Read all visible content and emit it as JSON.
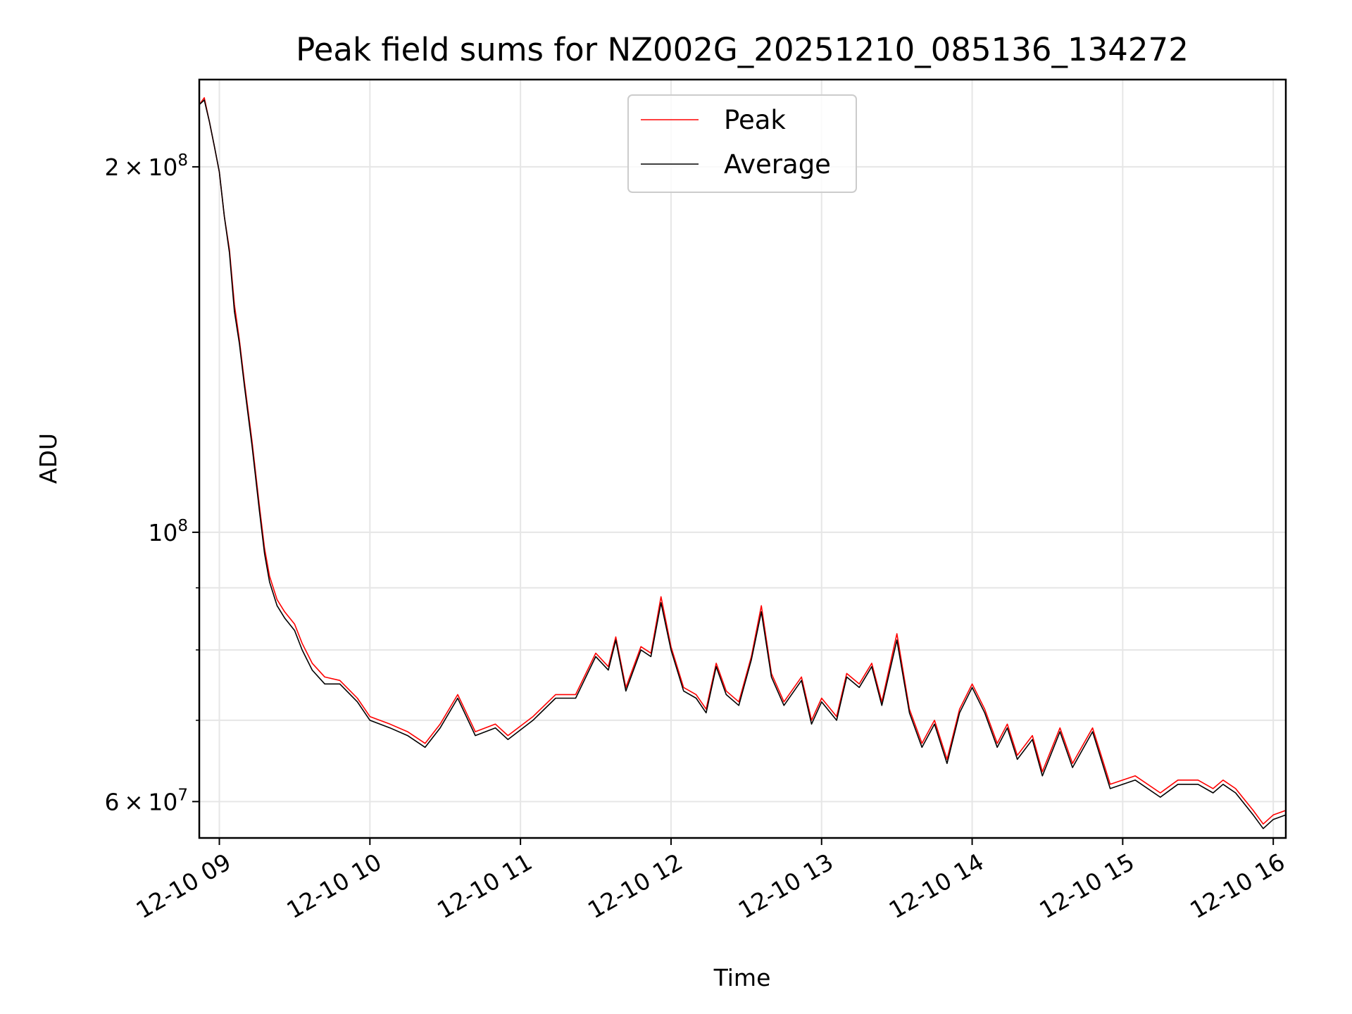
{
  "chart_data": {
    "type": "line",
    "title": "Peak field sums for NZ002G_20251210_085136_134272",
    "xlabel": "Time",
    "ylabel": "ADU",
    "y_scale": "log",
    "x_range": [
      "2025-12-10T08:52",
      "2025-12-10T16:05"
    ],
    "ylim": [
      56000000,
      236000000
    ],
    "grid": true,
    "legend_position": "upper center",
    "x_ticks": [
      {
        "t": "2025-12-10T09:00",
        "label": "12-10 09"
      },
      {
        "t": "2025-12-10T10:00",
        "label": "12-10 10"
      },
      {
        "t": "2025-12-10T11:00",
        "label": "12-10 11"
      },
      {
        "t": "2025-12-10T12:00",
        "label": "12-10 12"
      },
      {
        "t": "2025-12-10T13:00",
        "label": "12-10 13"
      },
      {
        "t": "2025-12-10T14:00",
        "label": "12-10 14"
      },
      {
        "t": "2025-12-10T15:00",
        "label": "12-10 15"
      },
      {
        "t": "2025-12-10T16:00",
        "label": "12-10 16"
      }
    ],
    "y_major_ticks": [
      {
        "value": 60000000,
        "mantissa": "6",
        "exponent": "7"
      },
      {
        "value": 100000000,
        "mantissa": "",
        "exponent": "8"
      },
      {
        "value": 200000000,
        "mantissa": "2",
        "exponent": "8"
      }
    ],
    "y_minor_gridlines": [
      70000000,
      80000000,
      90000000
    ],
    "series": [
      {
        "name": "Average",
        "color": "#000000",
        "points": [
          [
            "2025-12-10T08:52",
            225000000
          ],
          [
            "2025-12-10T08:54",
            227000000
          ],
          [
            "2025-12-10T08:56",
            218000000
          ],
          [
            "2025-12-10T08:58",
            208000000
          ],
          [
            "2025-12-10T09:00",
            198000000
          ],
          [
            "2025-12-10T09:02",
            182000000
          ],
          [
            "2025-12-10T09:04",
            170000000
          ],
          [
            "2025-12-10T09:06",
            152000000
          ],
          [
            "2025-12-10T09:08",
            143000000
          ],
          [
            "2025-12-10T09:10",
            132000000
          ],
          [
            "2025-12-10T09:13",
            118000000
          ],
          [
            "2025-12-10T09:16",
            104000000
          ],
          [
            "2025-12-10T09:18",
            96000000
          ],
          [
            "2025-12-10T09:20",
            91000000
          ],
          [
            "2025-12-10T09:23",
            87000000
          ],
          [
            "2025-12-10T09:26",
            85000000
          ],
          [
            "2025-12-10T09:30",
            83000000
          ],
          [
            "2025-12-10T09:33",
            80000000
          ],
          [
            "2025-12-10T09:37",
            77000000
          ],
          [
            "2025-12-10T09:42",
            75000000
          ],
          [
            "2025-12-10T09:48",
            75000000
          ],
          [
            "2025-12-10T09:55",
            72500000
          ],
          [
            "2025-12-10T10:00",
            70000000
          ],
          [
            "2025-12-10T10:08",
            69000000
          ],
          [
            "2025-12-10T10:15",
            68000000
          ],
          [
            "2025-12-10T10:22",
            66500000
          ],
          [
            "2025-12-10T10:28",
            69000000
          ],
          [
            "2025-12-10T10:35",
            73000000
          ],
          [
            "2025-12-10T10:42",
            68000000
          ],
          [
            "2025-12-10T10:50",
            69000000
          ],
          [
            "2025-12-10T10:55",
            67500000
          ],
          [
            "2025-12-10T11:05",
            70000000
          ],
          [
            "2025-12-10T11:14",
            73000000
          ],
          [
            "2025-12-10T11:22",
            73000000
          ],
          [
            "2025-12-10T11:30",
            79000000
          ],
          [
            "2025-12-10T11:35",
            77000000
          ],
          [
            "2025-12-10T11:38",
            81500000
          ],
          [
            "2025-12-10T11:42",
            74000000
          ],
          [
            "2025-12-10T11:48",
            80000000
          ],
          [
            "2025-12-10T11:52",
            79000000
          ],
          [
            "2025-12-10T11:56",
            87500000
          ],
          [
            "2025-12-10T12:00",
            80000000
          ],
          [
            "2025-12-10T12:05",
            74000000
          ],
          [
            "2025-12-10T12:10",
            73000000
          ],
          [
            "2025-12-10T12:14",
            71000000
          ],
          [
            "2025-12-10T12:18",
            77500000
          ],
          [
            "2025-12-10T12:22",
            73500000
          ],
          [
            "2025-12-10T12:27",
            72000000
          ],
          [
            "2025-12-10T12:32",
            78500000
          ],
          [
            "2025-12-10T12:36",
            86000000
          ],
          [
            "2025-12-10T12:40",
            76000000
          ],
          [
            "2025-12-10T12:45",
            72000000
          ],
          [
            "2025-12-10T12:52",
            75500000
          ],
          [
            "2025-12-10T12:56",
            69500000
          ],
          [
            "2025-12-10T13:00",
            72500000
          ],
          [
            "2025-12-10T13:06",
            70000000
          ],
          [
            "2025-12-10T13:10",
            76000000
          ],
          [
            "2025-12-10T13:15",
            74500000
          ],
          [
            "2025-12-10T13:20",
            77500000
          ],
          [
            "2025-12-10T13:24",
            72000000
          ],
          [
            "2025-12-10T13:30",
            81500000
          ],
          [
            "2025-12-10T13:35",
            71000000
          ],
          [
            "2025-12-10T13:40",
            66500000
          ],
          [
            "2025-12-10T13:45",
            69500000
          ],
          [
            "2025-12-10T13:50",
            64500000
          ],
          [
            "2025-12-10T13:55",
            71000000
          ],
          [
            "2025-12-10T14:00",
            74500000
          ],
          [
            "2025-12-10T14:05",
            71000000
          ],
          [
            "2025-12-10T14:10",
            66500000
          ],
          [
            "2025-12-10T14:14",
            69000000
          ],
          [
            "2025-12-10T14:18",
            65000000
          ],
          [
            "2025-12-10T14:24",
            67500000
          ],
          [
            "2025-12-10T14:28",
            63000000
          ],
          [
            "2025-12-10T14:35",
            68500000
          ],
          [
            "2025-12-10T14:40",
            64000000
          ],
          [
            "2025-12-10T14:48",
            68500000
          ],
          [
            "2025-12-10T14:55",
            61500000
          ],
          [
            "2025-12-10T15:05",
            62500000
          ],
          [
            "2025-12-10T15:15",
            60500000
          ],
          [
            "2025-12-10T15:22",
            62000000
          ],
          [
            "2025-12-10T15:30",
            62000000
          ],
          [
            "2025-12-10T15:36",
            61000000
          ],
          [
            "2025-12-10T15:40",
            62000000
          ],
          [
            "2025-12-10T15:45",
            61000000
          ],
          [
            "2025-12-10T15:52",
            58500000
          ],
          [
            "2025-12-10T15:56",
            57000000
          ],
          [
            "2025-12-10T16:00",
            58000000
          ],
          [
            "2025-12-10T16:05",
            58500000
          ]
        ]
      },
      {
        "name": "Peak",
        "color": "#ff0000",
        "points": [
          [
            "2025-12-10T08:52",
            225000000
          ],
          [
            "2025-12-10T08:54",
            228000000
          ],
          [
            "2025-12-10T08:56",
            218000000
          ],
          [
            "2025-12-10T08:58",
            208000000
          ],
          [
            "2025-12-10T09:00",
            198000000
          ],
          [
            "2025-12-10T09:02",
            182000000
          ],
          [
            "2025-12-10T09:04",
            171000000
          ],
          [
            "2025-12-10T09:06",
            154000000
          ],
          [
            "2025-12-10T09:08",
            144000000
          ],
          [
            "2025-12-10T09:10",
            133000000
          ],
          [
            "2025-12-10T09:13",
            119000000
          ],
          [
            "2025-12-10T09:16",
            105000000
          ],
          [
            "2025-12-10T09:18",
            97000000
          ],
          [
            "2025-12-10T09:20",
            92000000
          ],
          [
            "2025-12-10T09:23",
            88000000
          ],
          [
            "2025-12-10T09:26",
            86000000
          ],
          [
            "2025-12-10T09:30",
            84000000
          ],
          [
            "2025-12-10T09:33",
            81000000
          ],
          [
            "2025-12-10T09:37",
            78000000
          ],
          [
            "2025-12-10T09:42",
            76000000
          ],
          [
            "2025-12-10T09:48",
            75500000
          ],
          [
            "2025-12-10T09:55",
            73000000
          ],
          [
            "2025-12-10T10:00",
            70500000
          ],
          [
            "2025-12-10T10:08",
            69500000
          ],
          [
            "2025-12-10T10:15",
            68500000
          ],
          [
            "2025-12-10T10:22",
            67000000
          ],
          [
            "2025-12-10T10:28",
            69500000
          ],
          [
            "2025-12-10T10:35",
            73500000
          ],
          [
            "2025-12-10T10:42",
            68500000
          ],
          [
            "2025-12-10T10:50",
            69500000
          ],
          [
            "2025-12-10T10:55",
            68000000
          ],
          [
            "2025-12-10T11:05",
            70500000
          ],
          [
            "2025-12-10T11:14",
            73500000
          ],
          [
            "2025-12-10T11:22",
            73500000
          ],
          [
            "2025-12-10T11:30",
            79500000
          ],
          [
            "2025-12-10T11:35",
            77500000
          ],
          [
            "2025-12-10T11:38",
            82000000
          ],
          [
            "2025-12-10T11:42",
            74500000
          ],
          [
            "2025-12-10T11:48",
            80500000
          ],
          [
            "2025-12-10T11:52",
            79500000
          ],
          [
            "2025-12-10T11:56",
            88500000
          ],
          [
            "2025-12-10T12:00",
            80500000
          ],
          [
            "2025-12-10T12:05",
            74500000
          ],
          [
            "2025-12-10T12:10",
            73500000
          ],
          [
            "2025-12-10T12:14",
            71500000
          ],
          [
            "2025-12-10T12:18",
            78000000
          ],
          [
            "2025-12-10T12:22",
            74000000
          ],
          [
            "2025-12-10T12:27",
            72500000
          ],
          [
            "2025-12-10T12:32",
            79000000
          ],
          [
            "2025-12-10T12:36",
            87000000
          ],
          [
            "2025-12-10T12:40",
            76500000
          ],
          [
            "2025-12-10T12:45",
            72500000
          ],
          [
            "2025-12-10T12:52",
            76000000
          ],
          [
            "2025-12-10T12:56",
            70000000
          ],
          [
            "2025-12-10T13:00",
            73000000
          ],
          [
            "2025-12-10T13:06",
            70500000
          ],
          [
            "2025-12-10T13:10",
            76500000
          ],
          [
            "2025-12-10T13:15",
            75000000
          ],
          [
            "2025-12-10T13:20",
            78000000
          ],
          [
            "2025-12-10T13:24",
            72500000
          ],
          [
            "2025-12-10T13:30",
            82500000
          ],
          [
            "2025-12-10T13:35",
            71500000
          ],
          [
            "2025-12-10T13:40",
            67000000
          ],
          [
            "2025-12-10T13:45",
            70000000
          ],
          [
            "2025-12-10T13:50",
            65000000
          ],
          [
            "2025-12-10T13:55",
            71500000
          ],
          [
            "2025-12-10T14:00",
            75000000
          ],
          [
            "2025-12-10T14:05",
            71500000
          ],
          [
            "2025-12-10T14:10",
            67000000
          ],
          [
            "2025-12-10T14:14",
            69500000
          ],
          [
            "2025-12-10T14:18",
            65500000
          ],
          [
            "2025-12-10T14:24",
            68000000
          ],
          [
            "2025-12-10T14:28",
            63500000
          ],
          [
            "2025-12-10T14:35",
            69000000
          ],
          [
            "2025-12-10T14:40",
            64500000
          ],
          [
            "2025-12-10T14:48",
            69000000
          ],
          [
            "2025-12-10T14:55",
            62000000
          ],
          [
            "2025-12-10T15:05",
            63000000
          ],
          [
            "2025-12-10T15:15",
            61000000
          ],
          [
            "2025-12-10T15:22",
            62500000
          ],
          [
            "2025-12-10T15:30",
            62500000
          ],
          [
            "2025-12-10T15:36",
            61500000
          ],
          [
            "2025-12-10T15:40",
            62500000
          ],
          [
            "2025-12-10T15:45",
            61500000
          ],
          [
            "2025-12-10T15:52",
            59000000
          ],
          [
            "2025-12-10T15:56",
            57500000
          ],
          [
            "2025-12-10T16:00",
            58500000
          ],
          [
            "2025-12-10T16:05",
            59000000
          ]
        ]
      }
    ]
  }
}
